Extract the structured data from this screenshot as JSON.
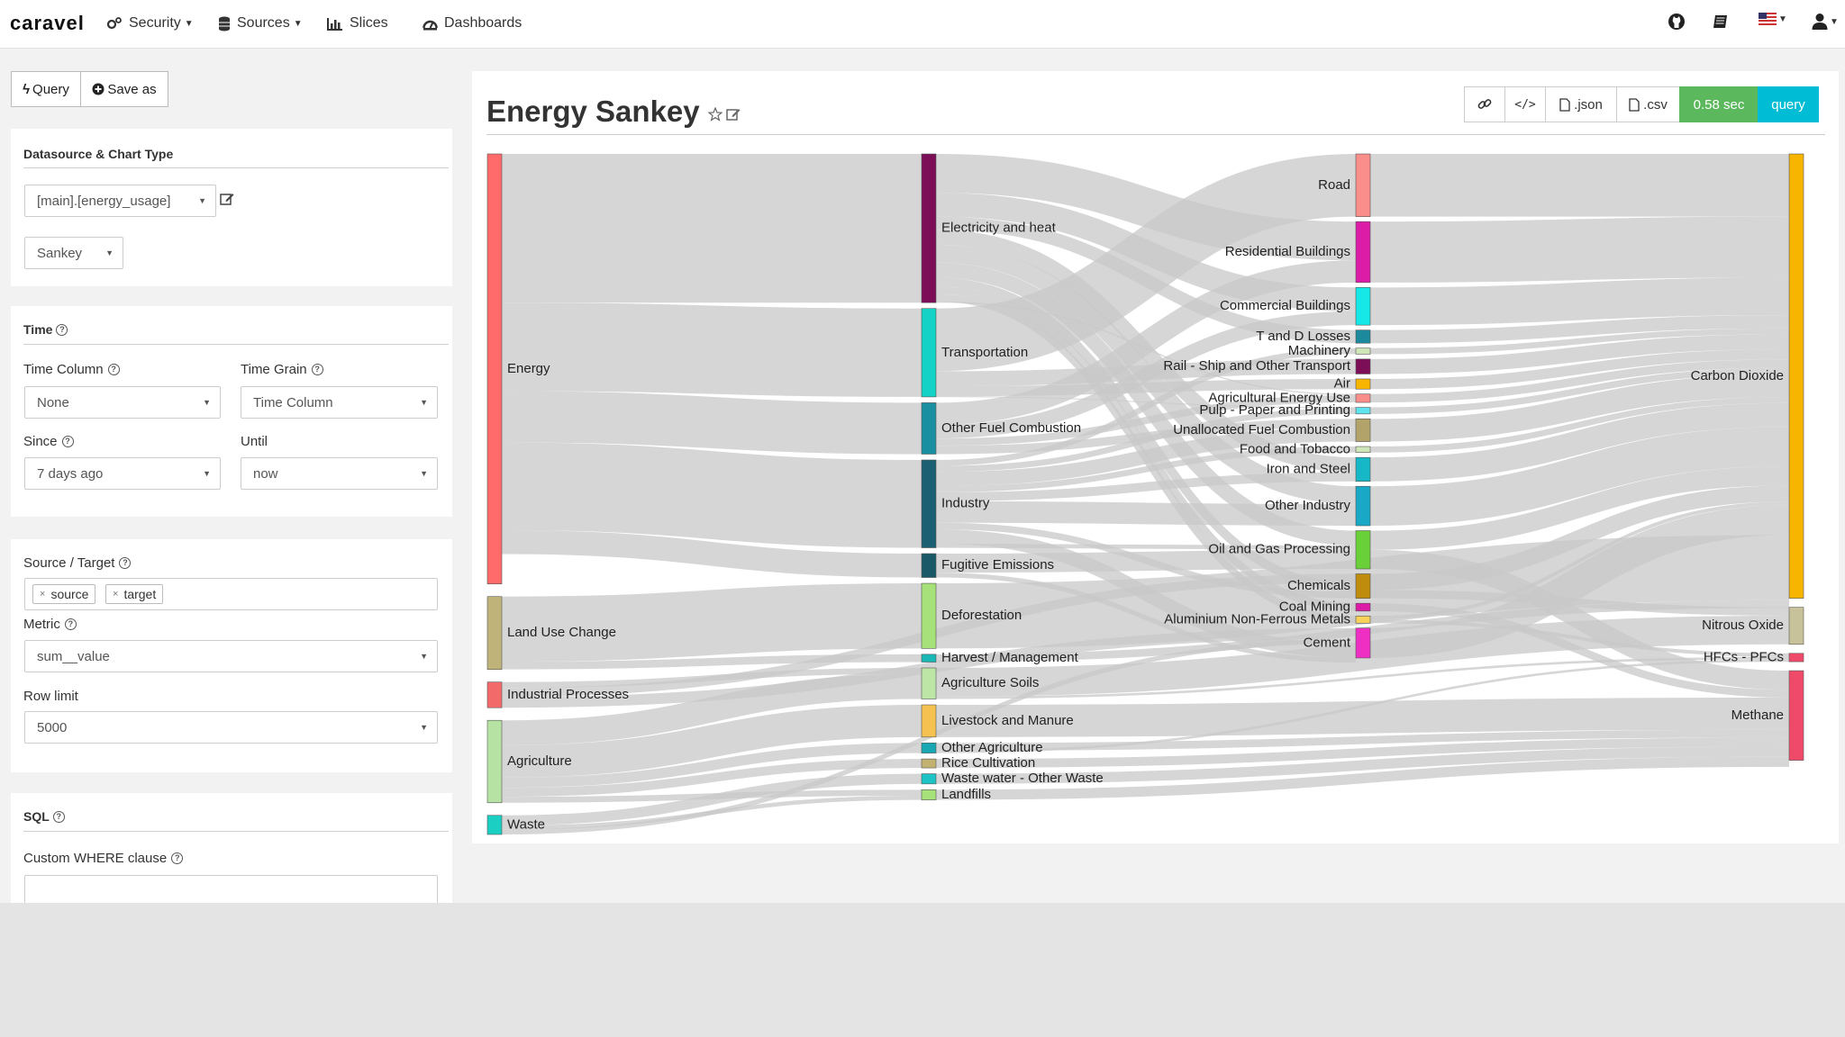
{
  "navbar": {
    "brand": "caravel",
    "items": [
      "Security",
      "Sources",
      "Slices",
      "Dashboards"
    ],
    "icons": [
      "github-icon",
      "book-icon",
      "us-flag-icon",
      "user-icon"
    ]
  },
  "toolbar": {
    "query_label": "Query",
    "save_label": "Save as"
  },
  "datasource_panel": {
    "title": "Datasource & Chart Type",
    "datasource_value": "[main].[energy_usage]",
    "chart_type_value": "Sankey"
  },
  "time_panel": {
    "title": "Time",
    "time_column_label": "Time Column",
    "time_column_value": "None",
    "time_grain_label": "Time Grain",
    "time_grain_value": "Time Column",
    "since_label": "Since",
    "since_value": "7 days ago",
    "until_label": "Until",
    "until_value": "now"
  },
  "query_panel": {
    "source_target_label": "Source / Target",
    "tags": [
      "source",
      "target"
    ],
    "metric_label": "Metric",
    "metric_value": "sum__value",
    "row_limit_label": "Row limit",
    "row_limit_value": "5000"
  },
  "sql_panel": {
    "title": "SQL",
    "where_label": "Custom WHERE clause",
    "where_value": ""
  },
  "chart": {
    "title": "Energy Sankey",
    "actions": {
      "json": ".json",
      "csv": ".csv",
      "timing": "0.58 sec",
      "query": "query"
    },
    "colors": {
      "green": "#5cb85c",
      "teal": "#00bcd4",
      "link": "#c8c8c8"
    }
  },
  "chart_data": {
    "type": "sankey",
    "nodes": [
      {
        "name": "Energy",
        "column": 0,
        "value": 72,
        "color": "#ff6b6b"
      },
      {
        "name": "Land Use Change",
        "column": 0,
        "value": 12.2,
        "color": "#bfb37a"
      },
      {
        "name": "Industrial Processes",
        "column": 0,
        "value": 4.3,
        "color": "#f36a6a"
      },
      {
        "name": "Agriculture",
        "column": 0,
        "value": 13.8,
        "color": "#b6e3a4"
      },
      {
        "name": "Waste",
        "column": 0,
        "value": 3.2,
        "color": "#1ccfc3"
      },
      {
        "name": "Electricity and heat",
        "column": 1,
        "value": 24.9,
        "color": "#7c0e57"
      },
      {
        "name": "Transportation",
        "column": 1,
        "value": 14.8,
        "color": "#14d3c6"
      },
      {
        "name": "Other Fuel Combustion",
        "column": 1,
        "value": 8.6,
        "color": "#1b8fa2"
      },
      {
        "name": "Industry",
        "column": 1,
        "value": 14.7,
        "color": "#1b5f72"
      },
      {
        "name": "Fugitive Emissions",
        "column": 1,
        "value": 4.0,
        "color": "#1a5a68"
      },
      {
        "name": "Deforestation",
        "column": 1,
        "value": 10.9,
        "color": "#a6e17a"
      },
      {
        "name": "Harvest / Management",
        "column": 1,
        "value": 1.3,
        "color": "#1ab7b7"
      },
      {
        "name": "Agriculture Soils",
        "column": 1,
        "value": 5.2,
        "color": "#bde5a6"
      },
      {
        "name": "Livestock and Manure",
        "column": 1,
        "value": 5.4,
        "color": "#f5c251"
      },
      {
        "name": "Other Agriculture",
        "column": 1,
        "value": 1.7,
        "color": "#19a8b3"
      },
      {
        "name": "Rice Cultivation",
        "column": 1,
        "value": 1.5,
        "color": "#c2b272"
      },
      {
        "name": "Waste water - Other Waste",
        "column": 1,
        "value": 1.7,
        "color": "#1ec3c6"
      },
      {
        "name": "Landfills",
        "column": 1,
        "value": 1.7,
        "color": "#a6e17a"
      },
      {
        "name": "Road",
        "column": 2,
        "value": 10.5,
        "color": "#f98e8a"
      },
      {
        "name": "Residential Buildings",
        "column": 2,
        "value": 10.2,
        "color": "#dc1ca6"
      },
      {
        "name": "Commercial Buildings",
        "column": 2,
        "value": 6.3,
        "color": "#16e7e7"
      },
      {
        "name": "T and D Losses",
        "column": 2,
        "value": 2.2,
        "color": "#1c8a9c"
      },
      {
        "name": "Machinery",
        "column": 2,
        "value": 1.0,
        "color": "#cfe6b8"
      },
      {
        "name": "Rail - Ship and Other Transport",
        "column": 2,
        "value": 2.5,
        "color": "#7c0e57"
      },
      {
        "name": "Air",
        "column": 2,
        "value": 1.7,
        "color": "#f7b500"
      },
      {
        "name": "Agricultural Energy Use",
        "column": 2,
        "value": 1.4,
        "color": "#f98e8a"
      },
      {
        "name": "Pulp - Paper and Printing",
        "column": 2,
        "value": 1.1,
        "color": "#5fe3ef"
      },
      {
        "name": "Unallocated Fuel Combustion",
        "column": 2,
        "value": 3.8,
        "color": "#b2a36a"
      },
      {
        "name": "Food and Tobacco",
        "column": 2,
        "value": 1.0,
        "color": "#cfe6b8"
      },
      {
        "name": "Iron and Steel",
        "column": 2,
        "value": 4.0,
        "color": "#16b7c6"
      },
      {
        "name": "Other Industry",
        "column": 2,
        "value": 6.6,
        "color": "#19a8c6"
      },
      {
        "name": "Oil and Gas Processing",
        "column": 2,
        "value": 6.4,
        "color": "#6ad039"
      },
      {
        "name": "Chemicals",
        "column": 2,
        "value": 4.1,
        "color": "#c08c0e"
      },
      {
        "name": "Coal Mining",
        "column": 2,
        "value": 1.3,
        "color": "#dc1ca6"
      },
      {
        "name": "Aluminium Non-Ferrous Metals",
        "column": 2,
        "value": 1.2,
        "color": "#f7d15a"
      },
      {
        "name": "Cement",
        "column": 2,
        "value": 5.0,
        "color": "#ef2fc4"
      },
      {
        "name": "Carbon Dioxide",
        "column": 3,
        "value": 74.4,
        "color": "#f7b500"
      },
      {
        "name": "Nitrous Oxide",
        "column": 3,
        "value": 6.2,
        "color": "#c8c29a"
      },
      {
        "name": "HFCs - PFCs",
        "column": 3,
        "value": 1.4,
        "color": "#f04a6a"
      },
      {
        "name": "Methane",
        "column": 3,
        "value": 15.0,
        "color": "#f04a6a"
      }
    ],
    "links": [
      [
        "Energy",
        "Electricity and heat",
        24.9
      ],
      [
        "Energy",
        "Transportation",
        14.8
      ],
      [
        "Energy",
        "Other Fuel Combustion",
        8.6
      ],
      [
        "Energy",
        "Industry",
        14.7
      ],
      [
        "Energy",
        "Fugitive Emissions",
        4.0
      ],
      [
        "Land Use Change",
        "Deforestation",
        10.9
      ],
      [
        "Land Use Change",
        "Harvest / Management",
        1.3
      ],
      [
        "Industrial Processes",
        "Agriculture Soils",
        1.0
      ],
      [
        "Industrial Processes",
        "Chemicals",
        1.5
      ],
      [
        "Industrial Processes",
        "Cement",
        1.8
      ],
      [
        "Agriculture",
        "Agriculture Soils",
        4.2
      ],
      [
        "Agriculture",
        "Livestock and Manure",
        5.4
      ],
      [
        "Agriculture",
        "Other Agriculture",
        1.7
      ],
      [
        "Agriculture",
        "Rice Cultivation",
        1.5
      ],
      [
        "Agriculture",
        "Landfills",
        1.0
      ],
      [
        "Waste",
        "Waste water - Other Waste",
        1.7
      ],
      [
        "Waste",
        "Landfills",
        0.7
      ],
      [
        "Waste",
        "Cement",
        0.8
      ],
      [
        "Electricity and heat",
        "Residential Buildings",
        6.5
      ],
      [
        "Electricity and heat",
        "Commercial Buildings",
        4.0
      ],
      [
        "Electricity and heat",
        "T and D Losses",
        2.2
      ],
      [
        "Electricity and heat",
        "Iron and Steel",
        2.5
      ],
      [
        "Electricity and heat",
        "Other Industry",
        3.0
      ],
      [
        "Electricity and heat",
        "Oil and Gas Processing",
        2.5
      ],
      [
        "Electricity and heat",
        "Chemicals",
        1.5
      ],
      [
        "Electricity and heat",
        "Coal Mining",
        1.3
      ],
      [
        "Electricity and heat",
        "Aluminium Non-Ferrous Metals",
        1.2
      ],
      [
        "Electricity and heat",
        "Agricultural Energy Use",
        0.2
      ],
      [
        "Transportation",
        "Road",
        10.5
      ],
      [
        "Transportation",
        "Rail - Ship and Other Transport",
        2.5
      ],
      [
        "Transportation",
        "Air",
        1.7
      ],
      [
        "Transportation",
        "Pulp - Paper and Printing",
        0.1
      ],
      [
        "Other Fuel Combustion",
        "Residential Buildings",
        3.7
      ],
      [
        "Other Fuel Combustion",
        "Commercial Buildings",
        2.3
      ],
      [
        "Other Fuel Combustion",
        "Agricultural Energy Use",
        1.2
      ],
      [
        "Other Fuel Combustion",
        "Unallocated Fuel Combustion",
        1.4
      ],
      [
        "Industry",
        "Machinery",
        1.0
      ],
      [
        "Industry",
        "Pulp - Paper and Printing",
        1.0
      ],
      [
        "Industry",
        "Unallocated Fuel Combustion",
        2.4
      ],
      [
        "Industry",
        "Food and Tobacco",
        1.0
      ],
      [
        "Industry",
        "Iron and Steel",
        1.5
      ],
      [
        "Industry",
        "Other Industry",
        3.6
      ],
      [
        "Industry",
        "Chemicals",
        1.1
      ],
      [
        "Industry",
        "Cement",
        2.4
      ],
      [
        "Industry",
        "Oil and Gas Processing",
        0.7
      ],
      [
        "Fugitive Emissions",
        "Oil and Gas Processing",
        3.2
      ],
      [
        "Fugitive Emissions",
        "Cement",
        0.8
      ],
      [
        "Road",
        "Carbon Dioxide",
        10.5
      ],
      [
        "Residential Buildings",
        "Carbon Dioxide",
        10.2
      ],
      [
        "Commercial Buildings",
        "Carbon Dioxide",
        6.3
      ],
      [
        "T and D Losses",
        "Carbon Dioxide",
        2.2
      ],
      [
        "Machinery",
        "Carbon Dioxide",
        1.0
      ],
      [
        "Rail - Ship and Other Transport",
        "Carbon Dioxide",
        2.5
      ],
      [
        "Air",
        "Carbon Dioxide",
        1.7
      ],
      [
        "Agricultural Energy Use",
        "Carbon Dioxide",
        1.4
      ],
      [
        "Pulp - Paper and Printing",
        "Carbon Dioxide",
        1.1
      ],
      [
        "Unallocated Fuel Combustion",
        "Carbon Dioxide",
        3.8
      ],
      [
        "Food and Tobacco",
        "Carbon Dioxide",
        1.0
      ],
      [
        "Iron and Steel",
        "Carbon Dioxide",
        4.0
      ],
      [
        "Other Industry",
        "Carbon Dioxide",
        6.6
      ],
      [
        "Oil and Gas Processing",
        "Carbon Dioxide",
        3.2
      ],
      [
        "Oil and Gas Processing",
        "Methane",
        3.2
      ],
      [
        "Chemicals",
        "Carbon Dioxide",
        2.7
      ],
      [
        "Chemicals",
        "Nitrous Oxide",
        1.4
      ],
      [
        "Coal Mining",
        "Methane",
        1.3
      ],
      [
        "Aluminium Non-Ferrous Metals",
        "Carbon Dioxide",
        0.6
      ],
      [
        "Aluminium Non-Ferrous Metals",
        "HFCs - PFCs",
        0.6
      ],
      [
        "Cement",
        "Carbon Dioxide",
        5.0
      ],
      [
        "Deforestation",
        "Carbon Dioxide",
        10.9
      ],
      [
        "Harvest / Management",
        "Carbon Dioxide",
        1.3
      ],
      [
        "Agriculture Soils",
        "Nitrous Oxide",
        4.8
      ],
      [
        "Agriculture Soils",
        "HFCs - PFCs",
        0.4
      ],
      [
        "Livestock and Manure",
        "Methane",
        5.4
      ],
      [
        "Other Agriculture",
        "Methane",
        1.3
      ],
      [
        "Other Agriculture",
        "HFCs - PFCs",
        0.4
      ],
      [
        "Rice Cultivation",
        "Methane",
        1.5
      ],
      [
        "Waste water - Other Waste",
        "Methane",
        1.7
      ],
      [
        "Landfills",
        "Methane",
        1.7
      ]
    ]
  }
}
